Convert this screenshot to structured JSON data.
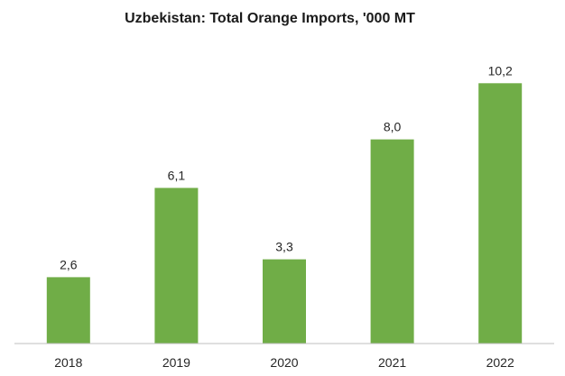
{
  "chart_data": {
    "type": "bar",
    "title": "Uzbekistan: Total Orange Imports, '000 MT",
    "categories": [
      "2018",
      "2019",
      "2020",
      "2021",
      "2022"
    ],
    "values": [
      2.6,
      6.1,
      3.3,
      8.0,
      10.2
    ],
    "data_labels": [
      "2,6",
      "6,1",
      "3,3",
      "8,0",
      "10,2"
    ],
    "xlabel": "",
    "ylabel": "",
    "ylim": [
      0,
      11
    ],
    "grid": false,
    "legend": "none",
    "colors": {
      "bar": "#70ad47",
      "axis": "#bfbfbf",
      "text": "#262626"
    }
  }
}
